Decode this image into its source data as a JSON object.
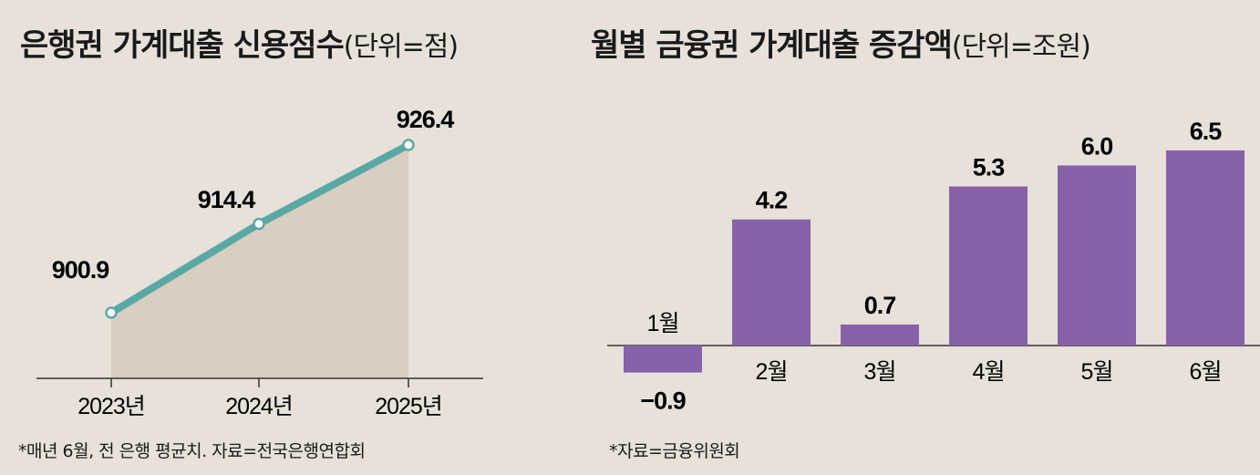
{
  "chart_data": [
    {
      "type": "area",
      "title": "은행권 가계대출 신용점수",
      "unit_label": "(단위=점)",
      "categories": [
        "2023년",
        "2024년",
        "2025년"
      ],
      "values": [
        900.9,
        914.4,
        926.4
      ],
      "value_labels": [
        "900.9",
        "914.4",
        "926.4"
      ],
      "ylim": [
        885,
        935
      ],
      "note": "*매년 6월, 전 은행 평균치. 자료=전국은행연합회",
      "colors": {
        "line": "#5aa8a6",
        "fill": "#d8cec1"
      }
    },
    {
      "type": "bar",
      "title": "월별 금융권 가계대출 증감액",
      "unit_label": "(단위=조원)",
      "categories": [
        "1월",
        "2월",
        "3월",
        "4월",
        "5월",
        "6월"
      ],
      "values": [
        -0.9,
        4.2,
        0.7,
        5.3,
        6.0,
        6.5
      ],
      "value_labels": [
        "−0.9",
        "4.2",
        "0.7",
        "5.3",
        "6.0",
        "6.5"
      ],
      "note": "*자료=금융위원회",
      "colors": {
        "bar": "#8762a8"
      }
    }
  ]
}
